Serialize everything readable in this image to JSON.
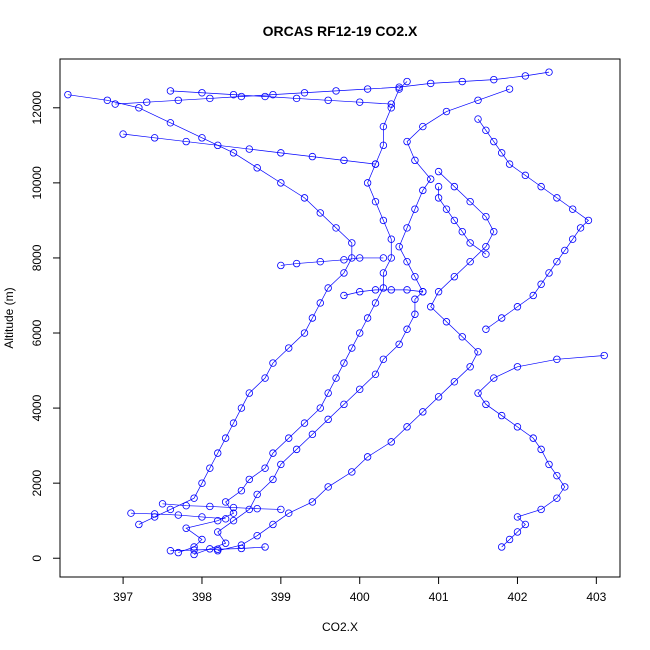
{
  "chart_data": {
    "type": "scatter",
    "title": "ORCAS RF12-19 CO2.X",
    "xlabel": "CO2.X",
    "ylabel": "Altitude (m)",
    "xlim": [
      396.2,
      403.3
    ],
    "ylim": [
      -500,
      13300
    ],
    "x_ticks": [
      397,
      398,
      399,
      400,
      401,
      402,
      403
    ],
    "y_ticks": [
      0,
      2000,
      4000,
      6000,
      8000,
      10000,
      12000
    ],
    "x_tick_labels": [
      "397",
      "398",
      "399",
      "400",
      "401",
      "402",
      "403"
    ],
    "y_tick_labels": [
      "0",
      "2000",
      "4000",
      "6000",
      "8000",
      "10000",
      "12000"
    ],
    "grid": false,
    "legend": "none",
    "marker": "open-circle",
    "color": "#0000ff",
    "series": [
      {
        "points": [
          [
            397.7,
            150
          ],
          [
            397.9,
            300
          ],
          [
            398.0,
            500
          ],
          [
            397.8,
            800
          ],
          [
            398.2,
            1000
          ],
          [
            398.4,
            1200
          ],
          [
            398.3,
            1500
          ],
          [
            398.5,
            1800
          ],
          [
            398.6,
            2100
          ],
          [
            398.8,
            2400
          ],
          [
            398.9,
            2800
          ],
          [
            399.1,
            3200
          ],
          [
            399.3,
            3600
          ],
          [
            399.5,
            4000
          ],
          [
            399.6,
            4400
          ],
          [
            399.7,
            4800
          ],
          [
            399.8,
            5200
          ],
          [
            399.9,
            5600
          ],
          [
            400.0,
            6000
          ],
          [
            400.1,
            6400
          ],
          [
            400.2,
            6800
          ],
          [
            400.3,
            7200
          ],
          [
            400.3,
            7600
          ],
          [
            400.4,
            8000
          ],
          [
            400.4,
            8500
          ],
          [
            400.3,
            9000
          ],
          [
            400.2,
            9500
          ],
          [
            400.1,
            10000
          ],
          [
            400.2,
            10500
          ],
          [
            400.3,
            11000
          ],
          [
            400.3,
            11500
          ],
          [
            400.4,
            12000
          ],
          [
            400.5,
            12500
          ],
          [
            400.6,
            12700
          ]
        ]
      },
      {
        "points": [
          [
            397.9,
            100
          ],
          [
            398.1,
            250
          ],
          [
            398.3,
            400
          ],
          [
            398.2,
            700
          ],
          [
            398.4,
            1000
          ],
          [
            398.6,
            1300
          ],
          [
            398.7,
            1700
          ],
          [
            398.9,
            2100
          ],
          [
            399.0,
            2500
          ],
          [
            399.2,
            2900
          ],
          [
            399.4,
            3300
          ],
          [
            399.6,
            3700
          ],
          [
            399.8,
            4100
          ],
          [
            400.0,
            4500
          ],
          [
            400.2,
            4900
          ],
          [
            400.3,
            5300
          ],
          [
            400.5,
            5700
          ],
          [
            400.6,
            6100
          ],
          [
            400.7,
            6500
          ],
          [
            400.7,
            6900
          ],
          [
            400.8,
            7100
          ],
          [
            400.7,
            7500
          ],
          [
            400.6,
            7900
          ],
          [
            400.5,
            8300
          ],
          [
            400.6,
            8800
          ],
          [
            400.7,
            9300
          ],
          [
            400.8,
            9800
          ],
          [
            400.9,
            10100
          ],
          [
            400.7,
            10600
          ],
          [
            400.6,
            11100
          ],
          [
            400.8,
            11500
          ],
          [
            401.1,
            11900
          ],
          [
            401.5,
            12200
          ],
          [
            401.9,
            12500
          ]
        ]
      },
      {
        "points": [
          [
            398.2,
            200
          ],
          [
            398.5,
            350
          ],
          [
            398.7,
            600
          ],
          [
            398.9,
            900
          ],
          [
            399.1,
            1200
          ],
          [
            399.4,
            1500
          ],
          [
            399.6,
            1900
          ],
          [
            399.9,
            2300
          ],
          [
            400.1,
            2700
          ],
          [
            400.4,
            3100
          ],
          [
            400.6,
            3500
          ],
          [
            400.8,
            3900
          ],
          [
            401.0,
            4300
          ],
          [
            401.2,
            4700
          ],
          [
            401.4,
            5100
          ],
          [
            401.5,
            5500
          ],
          [
            401.3,
            5900
          ],
          [
            401.1,
            6300
          ],
          [
            400.9,
            6700
          ],
          [
            401.0,
            7100
          ],
          [
            401.2,
            7500
          ],
          [
            401.4,
            7900
          ],
          [
            401.6,
            8300
          ],
          [
            401.7,
            8700
          ],
          [
            401.6,
            9100
          ],
          [
            401.4,
            9500
          ],
          [
            401.2,
            9900
          ],
          [
            401.0,
            10300
          ]
        ]
      },
      {
        "points": [
          [
            397.2,
            900
          ],
          [
            397.4,
            1100
          ],
          [
            397.6,
            1300
          ],
          [
            397.9,
            1600
          ],
          [
            398.0,
            2000
          ],
          [
            398.1,
            2400
          ],
          [
            398.2,
            2800
          ],
          [
            398.3,
            3200
          ],
          [
            398.4,
            3600
          ],
          [
            398.5,
            4000
          ],
          [
            398.6,
            4400
          ],
          [
            398.8,
            4800
          ],
          [
            398.9,
            5200
          ],
          [
            399.1,
            5600
          ],
          [
            399.3,
            6000
          ],
          [
            399.4,
            6400
          ],
          [
            399.5,
            6800
          ],
          [
            399.6,
            7200
          ],
          [
            399.8,
            7600
          ],
          [
            399.9,
            8000
          ],
          [
            399.9,
            8400
          ],
          [
            399.7,
            8800
          ],
          [
            399.5,
            9200
          ],
          [
            399.3,
            9600
          ],
          [
            399.0,
            10000
          ],
          [
            398.7,
            10400
          ],
          [
            398.4,
            10800
          ],
          [
            398.0,
            11200
          ],
          [
            397.6,
            11600
          ],
          [
            397.2,
            12000
          ],
          [
            396.8,
            12200
          ],
          [
            396.3,
            12350
          ]
        ]
      },
      {
        "points": [
          [
            401.8,
            300
          ],
          [
            401.9,
            500
          ],
          [
            402.0,
            700
          ],
          [
            402.1,
            900
          ],
          [
            402.0,
            1100
          ],
          [
            402.3,
            1300
          ],
          [
            402.5,
            1600
          ],
          [
            402.6,
            1900
          ],
          [
            402.5,
            2200
          ],
          [
            402.4,
            2500
          ],
          [
            402.3,
            2900
          ],
          [
            402.2,
            3200
          ],
          [
            402.0,
            3500
          ],
          [
            401.8,
            3800
          ],
          [
            401.6,
            4100
          ],
          [
            401.5,
            4400
          ],
          [
            401.7,
            4800
          ],
          [
            402.0,
            5100
          ],
          [
            402.5,
            5300
          ],
          [
            403.1,
            5400
          ]
        ]
      },
      {
        "points": [
          [
            401.6,
            6100
          ],
          [
            401.8,
            6400
          ],
          [
            402.0,
            6700
          ],
          [
            402.2,
            7000
          ],
          [
            402.3,
            7300
          ],
          [
            402.4,
            7600
          ],
          [
            402.5,
            7900
          ],
          [
            402.6,
            8200
          ],
          [
            402.7,
            8500
          ],
          [
            402.8,
            8800
          ],
          [
            402.9,
            9000
          ],
          [
            402.7,
            9300
          ],
          [
            402.5,
            9600
          ],
          [
            402.3,
            9900
          ],
          [
            402.1,
            10200
          ],
          [
            401.9,
            10500
          ],
          [
            401.8,
            10800
          ],
          [
            401.7,
            11100
          ],
          [
            401.6,
            11400
          ],
          [
            401.5,
            11700
          ]
        ]
      },
      {
        "points": [
          [
            401.6,
            8100
          ],
          [
            401.4,
            8400
          ],
          [
            401.3,
            8700
          ],
          [
            401.2,
            9000
          ],
          [
            401.1,
            9300
          ],
          [
            401.0,
            9600
          ],
          [
            401.0,
            9900
          ]
        ]
      },
      {
        "points": [
          [
            399.8,
            7000
          ],
          [
            400.0,
            7100
          ],
          [
            400.2,
            7150
          ],
          [
            400.4,
            7150
          ],
          [
            400.6,
            7150
          ],
          [
            400.8,
            7100
          ]
        ]
      },
      {
        "points": [
          [
            399.0,
            7800
          ],
          [
            399.2,
            7850
          ],
          [
            399.5,
            7900
          ],
          [
            399.8,
            7950
          ],
          [
            400.0,
            8000
          ],
          [
            400.3,
            8000
          ]
        ]
      },
      {
        "points": [
          [
            396.9,
            12100
          ],
          [
            397.3,
            12150
          ],
          [
            397.7,
            12200
          ],
          [
            398.1,
            12250
          ],
          [
            398.5,
            12300
          ],
          [
            398.9,
            12350
          ],
          [
            399.3,
            12400
          ],
          [
            399.7,
            12450
          ],
          [
            400.1,
            12500
          ],
          [
            400.5,
            12550
          ],
          [
            400.9,
            12650
          ],
          [
            401.3,
            12700
          ],
          [
            401.7,
            12750
          ],
          [
            402.1,
            12850
          ],
          [
            402.4,
            12950
          ]
        ]
      },
      {
        "points": [
          [
            397.0,
            11300
          ],
          [
            397.4,
            11200
          ],
          [
            397.8,
            11100
          ],
          [
            398.2,
            11000
          ],
          [
            398.6,
            10900
          ],
          [
            399.0,
            10800
          ],
          [
            399.4,
            10700
          ],
          [
            399.8,
            10600
          ],
          [
            400.2,
            10500
          ]
        ]
      },
      {
        "points": [
          [
            397.6,
            12450
          ],
          [
            398.0,
            12400
          ],
          [
            398.4,
            12350
          ],
          [
            398.8,
            12300
          ],
          [
            399.2,
            12250
          ],
          [
            399.6,
            12200
          ],
          [
            400.0,
            12150
          ],
          [
            400.4,
            12100
          ]
        ]
      },
      {
        "points": [
          [
            397.5,
            1450
          ],
          [
            397.8,
            1400
          ],
          [
            398.1,
            1380
          ],
          [
            398.4,
            1350
          ],
          [
            398.7,
            1320
          ],
          [
            399.0,
            1300
          ]
        ]
      },
      {
        "points": [
          [
            397.1,
            1200
          ],
          [
            397.4,
            1180
          ],
          [
            397.7,
            1150
          ],
          [
            398.0,
            1100
          ],
          [
            398.3,
            1050
          ]
        ]
      },
      {
        "points": [
          [
            397.6,
            200
          ],
          [
            397.9,
            220
          ],
          [
            398.2,
            240
          ],
          [
            398.5,
            260
          ],
          [
            398.8,
            300
          ]
        ]
      }
    ]
  }
}
